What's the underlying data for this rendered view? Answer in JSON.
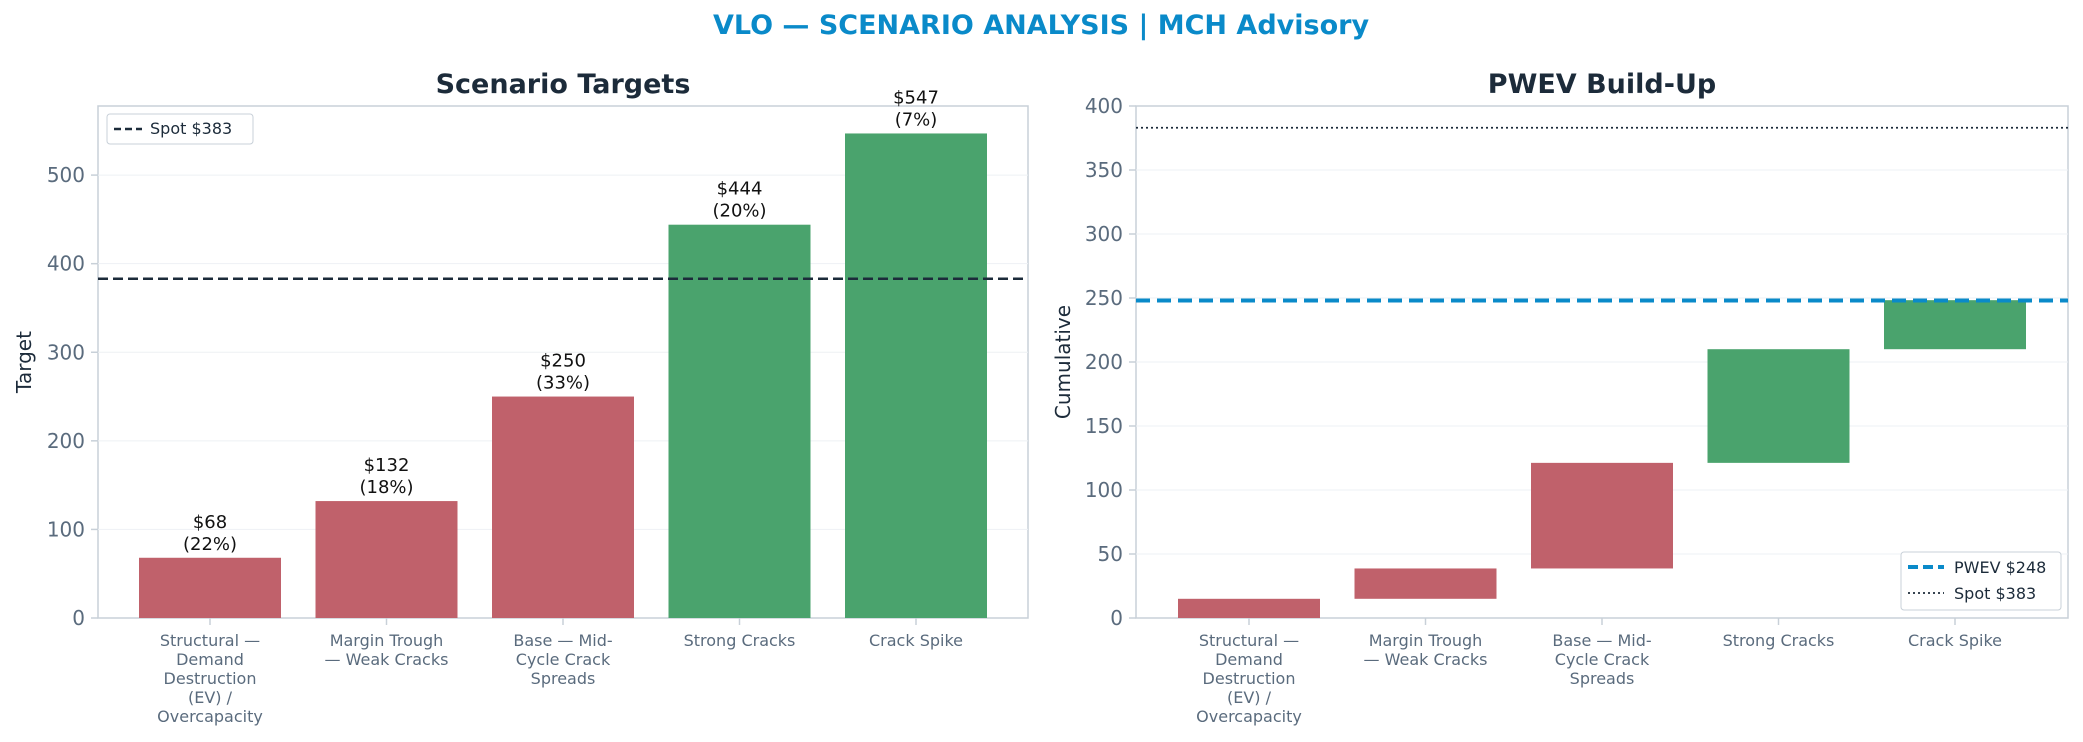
{
  "figure": {
    "suptitle": "VLO — SCENARIO ANALYSIS | MCH Advisory"
  },
  "colors": {
    "title": "#0a8ac9",
    "panel_title": "#1c2b3a",
    "bear": "#c0616b",
    "bull": "#4aa36d",
    "spot_line": "#1c2b3a",
    "pwev_line": "#0a8ac9",
    "axis": "#c8d0d8",
    "tick_text": "#5a6b7d",
    "grid": "#eef1f4"
  },
  "chart_data": [
    {
      "type": "bar",
      "title": "Scenario Targets",
      "xlabel": "",
      "ylabel": "Target",
      "ylim": [
        0,
        578
      ],
      "yticks": [
        "0",
        "100",
        "200",
        "300",
        "400",
        "500"
      ],
      "categories": [
        "Structural — Demand Destruction (EV) / Overcapacity",
        "Margin Trough — Weak Cracks",
        "Base — Mid-Cycle Crack Spreads",
        "Strong Cracks",
        "Crack Spike"
      ],
      "category_lines": [
        [
          "Structural —",
          "Demand",
          "Destruction",
          "(EV) /",
          "Overcapacity"
        ],
        [
          "Margin Trough",
          "— Weak Cracks"
        ],
        [
          "Base — Mid-",
          "Cycle Crack",
          "Spreads"
        ],
        [
          "Strong Cracks"
        ],
        [
          "Crack Spike"
        ]
      ],
      "values": [
        68,
        132,
        250,
        444,
        547
      ],
      "probabilities": [
        "22%",
        "18%",
        "33%",
        "20%",
        "7%"
      ],
      "value_labels": [
        "$68",
        "$132",
        "$250",
        "$444",
        "$547"
      ],
      "bar_sentiment": [
        "bear",
        "bear",
        "bear",
        "bull",
        "bull"
      ],
      "reference_line": {
        "label": "Spot $383",
        "value": 383,
        "style": "dashed"
      },
      "legend": {
        "position": "top-left",
        "entries": [
          "Spot $383"
        ]
      },
      "grid": true
    },
    {
      "type": "bar",
      "subtype": "waterfall",
      "title": "PWEV Build-Up",
      "xlabel": "",
      "ylabel": "Cumulative",
      "ylim": [
        0,
        400
      ],
      "yticks": [
        "0",
        "50",
        "100",
        "150",
        "200",
        "250",
        "300",
        "350",
        "400"
      ],
      "categories": [
        "Structural — Demand Destruction (EV) / Overcapacity",
        "Margin Trough — Weak Cracks",
        "Base — Mid-Cycle Crack Spreads",
        "Strong Cracks",
        "Crack Spike"
      ],
      "category_lines": [
        [
          "Structural —",
          "Demand",
          "Destruction",
          "(EV) /",
          "Overcapacity"
        ],
        [
          "Margin Trough",
          "— Weak Cracks"
        ],
        [
          "Base — Mid-",
          "Cycle Crack",
          "Spreads"
        ],
        [
          "Strong Cracks"
        ],
        [
          "Crack Spike"
        ]
      ],
      "steps": [
        {
          "start": 0,
          "end": 15
        },
        {
          "start": 15,
          "end": 38.7
        },
        {
          "start": 38.7,
          "end": 121.2
        },
        {
          "start": 121.2,
          "end": 210
        },
        {
          "start": 210,
          "end": 248.3
        }
      ],
      "bar_sentiment": [
        "bear",
        "bear",
        "bear",
        "bull",
        "bull"
      ],
      "reference_lines": [
        {
          "label": "PWEV $248",
          "value": 248,
          "style": "dashed"
        },
        {
          "label": "Spot $383",
          "value": 383,
          "style": "dotted"
        }
      ],
      "legend": {
        "position": "bottom-right",
        "entries": [
          "PWEV $248",
          "Spot $383"
        ]
      },
      "grid": true
    }
  ]
}
